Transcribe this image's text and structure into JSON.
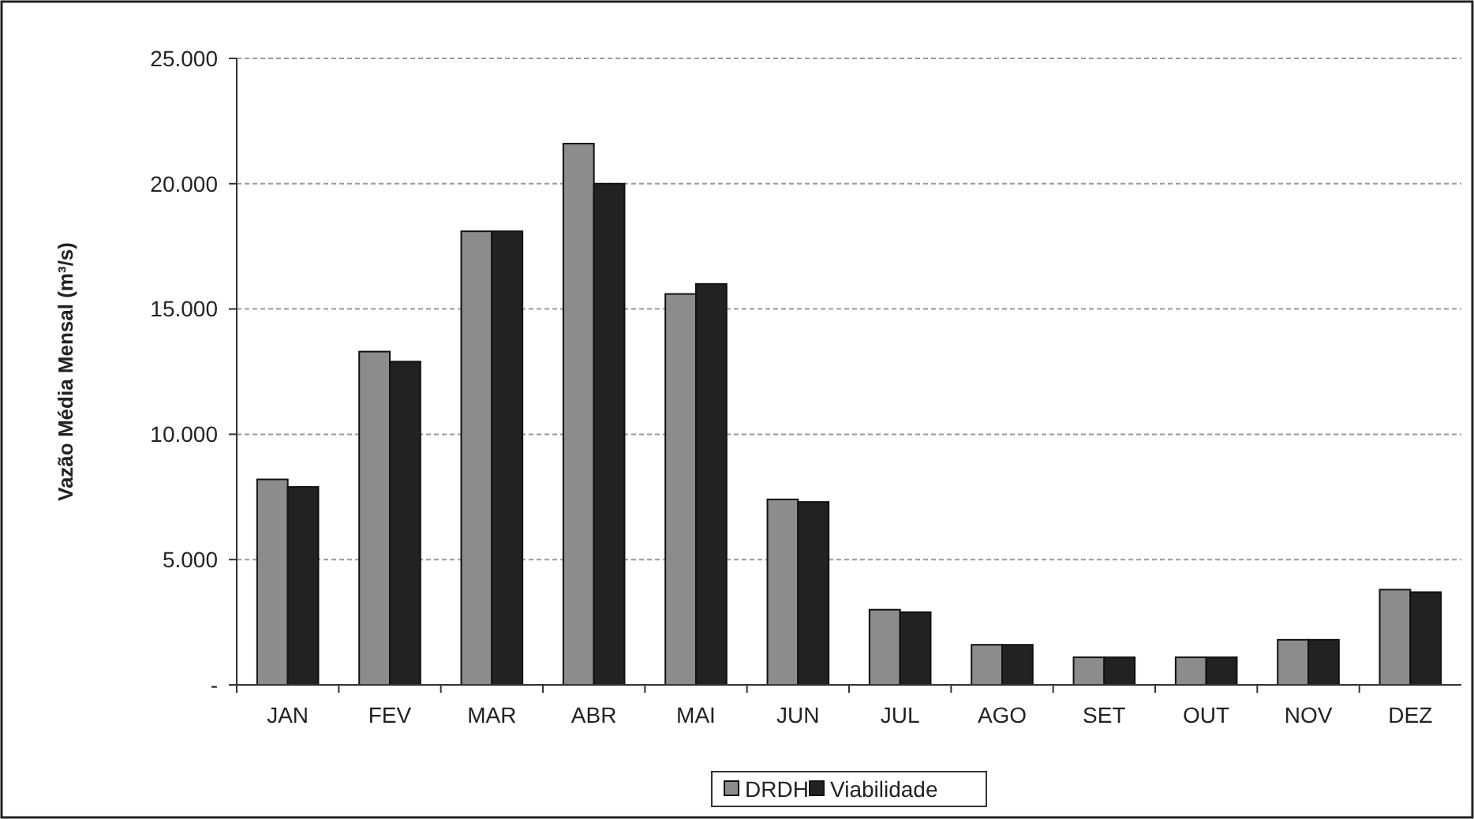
{
  "chart_data": {
    "type": "bar",
    "ylabel": "Vazão Média Mensal (m³/s)",
    "categories": [
      "JAN",
      "FEV",
      "MAR",
      "ABR",
      "MAI",
      "JUN",
      "JUL",
      "AGO",
      "SET",
      "OUT",
      "NOV",
      "DEZ"
    ],
    "series": [
      {
        "name": "DRDH",
        "color": "#8c8c8c",
        "values": [
          8200,
          13300,
          18100,
          21600,
          15600,
          7400,
          3000,
          1600,
          1100,
          1100,
          1800,
          3800
        ]
      },
      {
        "name": "Viabilidade",
        "color": "#222222",
        "values": [
          7900,
          12900,
          18100,
          20000,
          16000,
          7300,
          2900,
          1600,
          1100,
          1100,
          1800,
          3700
        ]
      }
    ],
    "ylim": [
      0,
      25000
    ],
    "yticks": [
      {
        "value": 0,
        "label": "-"
      },
      {
        "value": 5000,
        "label": "5.000"
      },
      {
        "value": 10000,
        "label": "10.000"
      },
      {
        "value": 15000,
        "label": "15.000"
      },
      {
        "value": 20000,
        "label": "20.000"
      },
      {
        "value": 25000,
        "label": "25.000"
      }
    ],
    "grid": "y",
    "legend": "bottom"
  }
}
